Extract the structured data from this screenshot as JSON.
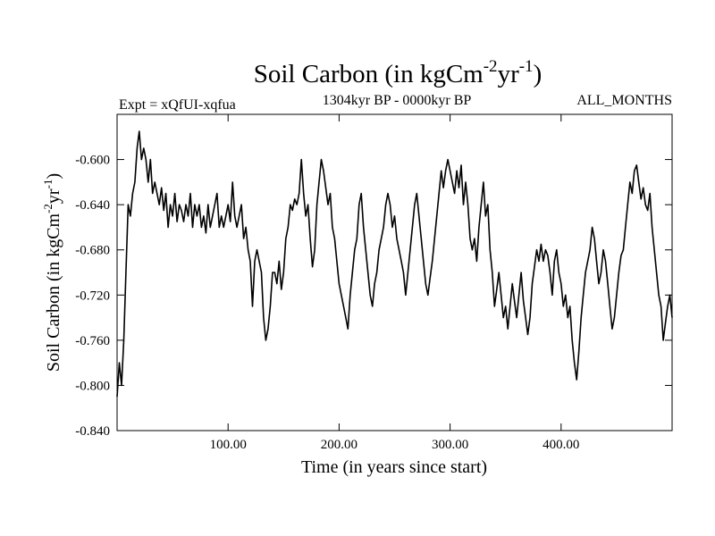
{
  "chart_data": {
    "type": "line",
    "title": {
      "main": "Soil Carbon (in kgCm",
      "exp1": "-2",
      "mid": "yr",
      "exp2": "-1",
      "end": ")"
    },
    "subtitle": "1304kyr BP - 0000kyr BP",
    "left_label": "Expt = xQfUI-xqfua",
    "right_label": "ALL_MONTHS",
    "xlabel": "Time (in years since start)",
    "ylabel": {
      "main": "Soil Carbon (in kgCm",
      "exp1": "-2",
      "mid": "yr",
      "exp2": "-1",
      "end": ")"
    },
    "xlim": [
      0,
      500
    ],
    "ylim": [
      -0.84,
      -0.56
    ],
    "x_ticks": [
      {
        "value": 100,
        "label": "100.00"
      },
      {
        "value": 200,
        "label": "200.00"
      },
      {
        "value": 300,
        "label": "300.00"
      },
      {
        "value": 400,
        "label": "400.00"
      }
    ],
    "y_ticks": [
      {
        "value": -0.6,
        "label": "-0.600"
      },
      {
        "value": -0.64,
        "label": "-0.640"
      },
      {
        "value": -0.68,
        "label": "-0.680"
      },
      {
        "value": -0.72,
        "label": "-0.720"
      },
      {
        "value": -0.76,
        "label": "-0.760"
      },
      {
        "value": -0.8,
        "label": "-0.800"
      },
      {
        "value": -0.84,
        "label": "-0.840"
      }
    ],
    "grid": false,
    "series": [
      {
        "name": "Soil Carbon",
        "color": "#000000",
        "points": [
          [
            0,
            -0.81
          ],
          [
            2,
            -0.78
          ],
          [
            4,
            -0.8
          ],
          [
            6,
            -0.76
          ],
          [
            8,
            -0.7
          ],
          [
            10,
            -0.64
          ],
          [
            12,
            -0.65
          ],
          [
            14,
            -0.63
          ],
          [
            16,
            -0.62
          ],
          [
            18,
            -0.59
          ],
          [
            20,
            -0.575
          ],
          [
            22,
            -0.6
          ],
          [
            24,
            -0.59
          ],
          [
            26,
            -0.6
          ],
          [
            28,
            -0.62
          ],
          [
            30,
            -0.6
          ],
          [
            32,
            -0.63
          ],
          [
            34,
            -0.62
          ],
          [
            36,
            -0.63
          ],
          [
            38,
            -0.64
          ],
          [
            40,
            -0.625
          ],
          [
            42,
            -0.645
          ],
          [
            44,
            -0.63
          ],
          [
            46,
            -0.66
          ],
          [
            48,
            -0.64
          ],
          [
            50,
            -0.65
          ],
          [
            52,
            -0.63
          ],
          [
            54,
            -0.655
          ],
          [
            56,
            -0.64
          ],
          [
            58,
            -0.645
          ],
          [
            60,
            -0.655
          ],
          [
            62,
            -0.64
          ],
          [
            64,
            -0.65
          ],
          [
            66,
            -0.63
          ],
          [
            68,
            -0.66
          ],
          [
            70,
            -0.64
          ],
          [
            72,
            -0.65
          ],
          [
            74,
            -0.64
          ],
          [
            76,
            -0.66
          ],
          [
            78,
            -0.65
          ],
          [
            80,
            -0.665
          ],
          [
            82,
            -0.64
          ],
          [
            84,
            -0.66
          ],
          [
            86,
            -0.65
          ],
          [
            88,
            -0.64
          ],
          [
            90,
            -0.63
          ],
          [
            92,
            -0.66
          ],
          [
            94,
            -0.65
          ],
          [
            96,
            -0.66
          ],
          [
            98,
            -0.65
          ],
          [
            100,
            -0.64
          ],
          [
            102,
            -0.655
          ],
          [
            104,
            -0.62
          ],
          [
            106,
            -0.65
          ],
          [
            108,
            -0.66
          ],
          [
            110,
            -0.65
          ],
          [
            112,
            -0.64
          ],
          [
            114,
            -0.67
          ],
          [
            116,
            -0.66
          ],
          [
            118,
            -0.68
          ],
          [
            120,
            -0.69
          ],
          [
            122,
            -0.73
          ],
          [
            124,
            -0.69
          ],
          [
            126,
            -0.68
          ],
          [
            128,
            -0.69
          ],
          [
            130,
            -0.7
          ],
          [
            132,
            -0.74
          ],
          [
            134,
            -0.76
          ],
          [
            136,
            -0.75
          ],
          [
            138,
            -0.73
          ],
          [
            140,
            -0.7
          ],
          [
            142,
            -0.7
          ],
          [
            144,
            -0.71
          ],
          [
            146,
            -0.69
          ],
          [
            148,
            -0.715
          ],
          [
            150,
            -0.7
          ],
          [
            152,
            -0.67
          ],
          [
            154,
            -0.66
          ],
          [
            156,
            -0.64
          ],
          [
            158,
            -0.645
          ],
          [
            160,
            -0.635
          ],
          [
            162,
            -0.64
          ],
          [
            164,
            -0.63
          ],
          [
            166,
            -0.6
          ],
          [
            168,
            -0.63
          ],
          [
            170,
            -0.65
          ],
          [
            172,
            -0.64
          ],
          [
            174,
            -0.67
          ],
          [
            176,
            -0.695
          ],
          [
            178,
            -0.68
          ],
          [
            180,
            -0.64
          ],
          [
            182,
            -0.62
          ],
          [
            184,
            -0.6
          ],
          [
            186,
            -0.61
          ],
          [
            188,
            -0.625
          ],
          [
            190,
            -0.64
          ],
          [
            192,
            -0.63
          ],
          [
            194,
            -0.66
          ],
          [
            196,
            -0.67
          ],
          [
            198,
            -0.69
          ],
          [
            200,
            -0.71
          ],
          [
            202,
            -0.72
          ],
          [
            204,
            -0.73
          ],
          [
            206,
            -0.74
          ],
          [
            208,
            -0.75
          ],
          [
            210,
            -0.72
          ],
          [
            212,
            -0.7
          ],
          [
            214,
            -0.68
          ],
          [
            216,
            -0.67
          ],
          [
            218,
            -0.64
          ],
          [
            220,
            -0.63
          ],
          [
            222,
            -0.66
          ],
          [
            224,
            -0.68
          ],
          [
            226,
            -0.7
          ],
          [
            228,
            -0.72
          ],
          [
            230,
            -0.73
          ],
          [
            232,
            -0.71
          ],
          [
            234,
            -0.7
          ],
          [
            236,
            -0.68
          ],
          [
            238,
            -0.67
          ],
          [
            240,
            -0.66
          ],
          [
            242,
            -0.64
          ],
          [
            244,
            -0.63
          ],
          [
            246,
            -0.64
          ],
          [
            248,
            -0.66
          ],
          [
            250,
            -0.65
          ],
          [
            252,
            -0.67
          ],
          [
            254,
            -0.68
          ],
          [
            256,
            -0.69
          ],
          [
            258,
            -0.7
          ],
          [
            260,
            -0.72
          ],
          [
            262,
            -0.7
          ],
          [
            264,
            -0.68
          ],
          [
            266,
            -0.66
          ],
          [
            268,
            -0.64
          ],
          [
            270,
            -0.63
          ],
          [
            272,
            -0.65
          ],
          [
            274,
            -0.67
          ],
          [
            276,
            -0.69
          ],
          [
            278,
            -0.71
          ],
          [
            280,
            -0.72
          ],
          [
            282,
            -0.705
          ],
          [
            284,
            -0.69
          ],
          [
            286,
            -0.67
          ],
          [
            288,
            -0.65
          ],
          [
            290,
            -0.63
          ],
          [
            292,
            -0.61
          ],
          [
            294,
            -0.625
          ],
          [
            296,
            -0.61
          ],
          [
            298,
            -0.6
          ],
          [
            300,
            -0.61
          ],
          [
            302,
            -0.62
          ],
          [
            304,
            -0.63
          ],
          [
            306,
            -0.61
          ],
          [
            308,
            -0.625
          ],
          [
            310,
            -0.605
          ],
          [
            312,
            -0.64
          ],
          [
            314,
            -0.62
          ],
          [
            316,
            -0.64
          ],
          [
            318,
            -0.67
          ],
          [
            320,
            -0.68
          ],
          [
            322,
            -0.67
          ],
          [
            324,
            -0.69
          ],
          [
            326,
            -0.66
          ],
          [
            328,
            -0.64
          ],
          [
            330,
            -0.62
          ],
          [
            332,
            -0.65
          ],
          [
            334,
            -0.64
          ],
          [
            336,
            -0.68
          ],
          [
            338,
            -0.7
          ],
          [
            340,
            -0.73
          ],
          [
            342,
            -0.715
          ],
          [
            344,
            -0.7
          ],
          [
            346,
            -0.72
          ],
          [
            348,
            -0.74
          ],
          [
            350,
            -0.73
          ],
          [
            352,
            -0.75
          ],
          [
            354,
            -0.73
          ],
          [
            356,
            -0.71
          ],
          [
            358,
            -0.725
          ],
          [
            360,
            -0.74
          ],
          [
            362,
            -0.72
          ],
          [
            364,
            -0.7
          ],
          [
            366,
            -0.725
          ],
          [
            368,
            -0.74
          ],
          [
            370,
            -0.755
          ],
          [
            372,
            -0.74
          ],
          [
            374,
            -0.71
          ],
          [
            376,
            -0.695
          ],
          [
            378,
            -0.68
          ],
          [
            380,
            -0.69
          ],
          [
            382,
            -0.675
          ],
          [
            384,
            -0.69
          ],
          [
            386,
            -0.68
          ],
          [
            388,
            -0.685
          ],
          [
            390,
            -0.7
          ],
          [
            392,
            -0.72
          ],
          [
            394,
            -0.69
          ],
          [
            396,
            -0.68
          ],
          [
            398,
            -0.7
          ],
          [
            400,
            -0.71
          ],
          [
            402,
            -0.73
          ],
          [
            404,
            -0.72
          ],
          [
            406,
            -0.74
          ],
          [
            408,
            -0.73
          ],
          [
            410,
            -0.76
          ],
          [
            412,
            -0.78
          ],
          [
            414,
            -0.795
          ],
          [
            416,
            -0.77
          ],
          [
            418,
            -0.74
          ],
          [
            420,
            -0.72
          ],
          [
            422,
            -0.7
          ],
          [
            424,
            -0.69
          ],
          [
            426,
            -0.68
          ],
          [
            428,
            -0.66
          ],
          [
            430,
            -0.67
          ],
          [
            432,
            -0.69
          ],
          [
            434,
            -0.71
          ],
          [
            436,
            -0.7
          ],
          [
            438,
            -0.68
          ],
          [
            440,
            -0.69
          ],
          [
            442,
            -0.71
          ],
          [
            444,
            -0.73
          ],
          [
            446,
            -0.75
          ],
          [
            448,
            -0.74
          ],
          [
            450,
            -0.72
          ],
          [
            452,
            -0.7
          ],
          [
            454,
            -0.685
          ],
          [
            456,
            -0.68
          ],
          [
            458,
            -0.66
          ],
          [
            460,
            -0.64
          ],
          [
            462,
            -0.62
          ],
          [
            464,
            -0.63
          ],
          [
            466,
            -0.61
          ],
          [
            468,
            -0.605
          ],
          [
            470,
            -0.62
          ],
          [
            472,
            -0.635
          ],
          [
            474,
            -0.625
          ],
          [
            476,
            -0.64
          ],
          [
            478,
            -0.645
          ],
          [
            480,
            -0.63
          ],
          [
            482,
            -0.66
          ],
          [
            484,
            -0.68
          ],
          [
            486,
            -0.7
          ],
          [
            488,
            -0.72
          ],
          [
            490,
            -0.73
          ],
          [
            492,
            -0.76
          ],
          [
            494,
            -0.745
          ],
          [
            496,
            -0.73
          ],
          [
            498,
            -0.72
          ],
          [
            500,
            -0.74
          ]
        ]
      }
    ]
  }
}
